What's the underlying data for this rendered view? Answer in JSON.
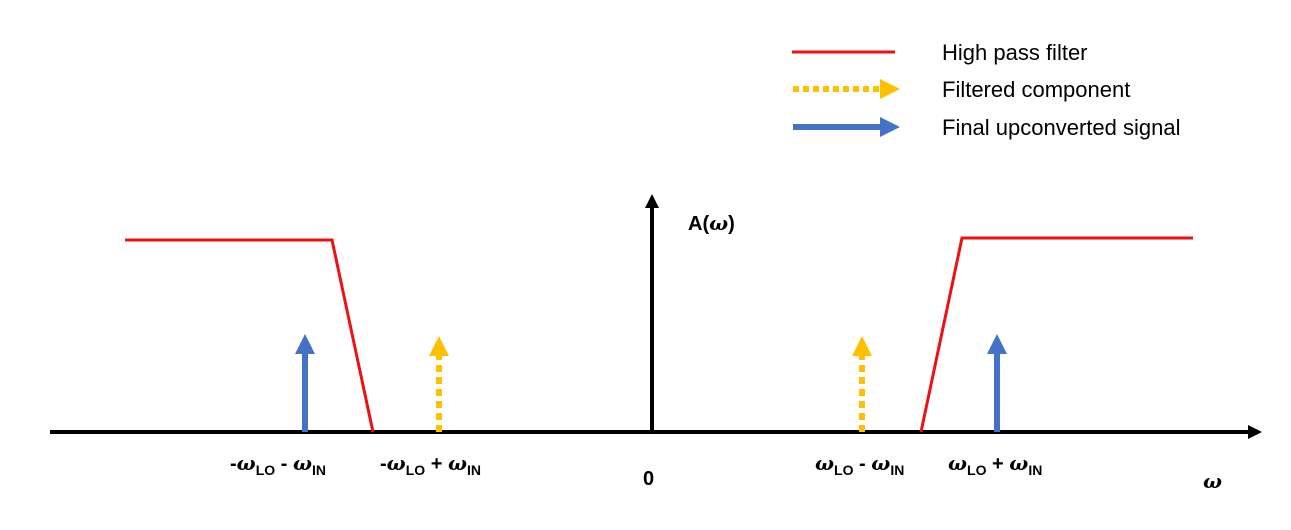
{
  "colors": {
    "axis": "#000000",
    "filter": "#ee1111",
    "filtered_component": "#ffc000",
    "upconverted_signal": "#4472c4"
  },
  "legend": {
    "filter_label": "High pass filter",
    "filtered_label": "Filtered component",
    "signal_label": "Final upconverted signal"
  },
  "axes": {
    "y_label_prefix": "A(",
    "y_label_var": "ω",
    "y_label_suffix": ")",
    "x_label": "ω",
    "origin_label": "0"
  },
  "tick_labels": {
    "neg_lo_minus_in": {
      "sign": "-",
      "omega1": "ω",
      "sub1": "LO",
      "op": " - ",
      "omega2": "ω",
      "sub2": "IN"
    },
    "neg_lo_plus_in": {
      "sign": "-",
      "omega1": "ω",
      "sub1": "LO",
      "op": " + ",
      "omega2": "ω",
      "sub2": "IN"
    },
    "lo_minus_in": {
      "sign": "",
      "omega1": "ω",
      "sub1": "LO",
      "op": " - ",
      "omega2": "ω",
      "sub2": "IN"
    },
    "lo_plus_in": {
      "sign": "",
      "omega1": "ω",
      "sub1": "LO",
      "op": " + ",
      "omega2": "ω",
      "sub2": "IN"
    }
  }
}
